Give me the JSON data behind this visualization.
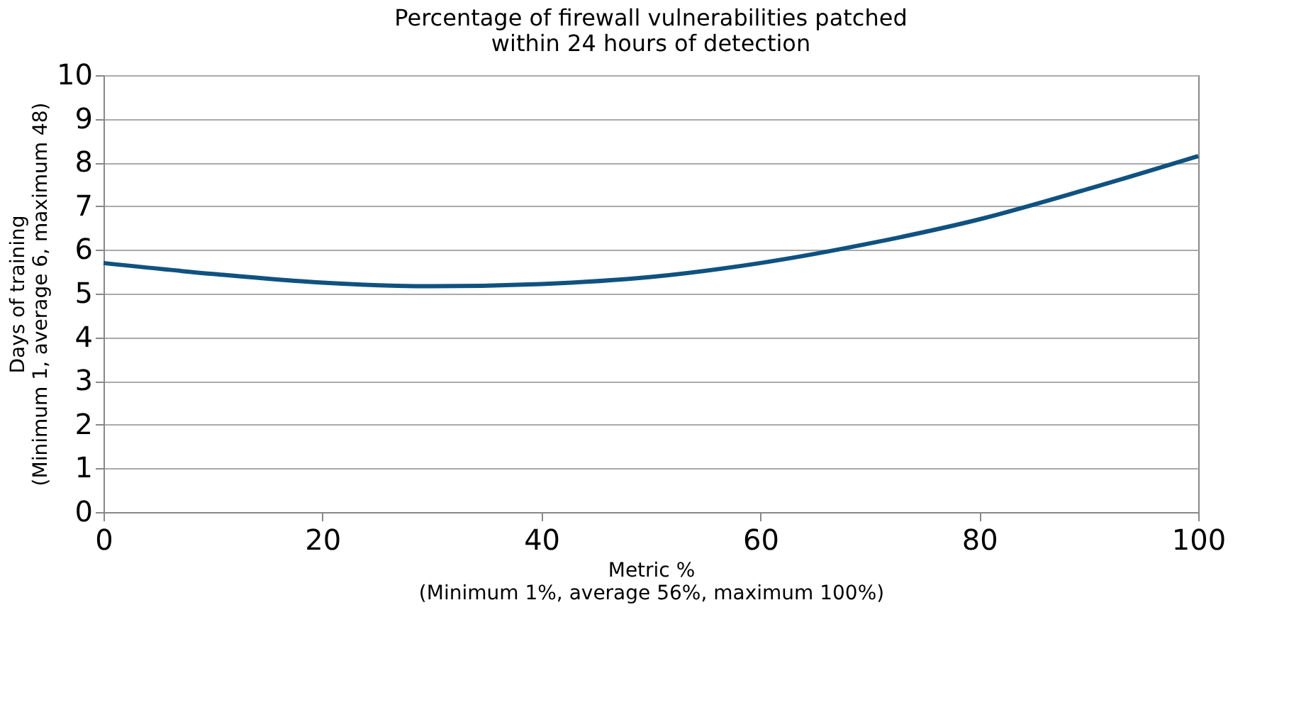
{
  "chart_data": {
    "type": "line",
    "title": "Percentage of firewall  vulnerabilities patched\nwithin 24 hours of detection",
    "xlabel": "Metric %\n(Minimum 1%, average 56%, maximum 100%)",
    "ylabel": "Days of training\n(Minimum 1, average 6, maximum 48)",
    "x": [
      0,
      10,
      20,
      30,
      40,
      50,
      60,
      70,
      80,
      90,
      100
    ],
    "series": [
      {
        "color": "#0f5280",
        "values": [
          5.7,
          5.45,
          5.25,
          5.17,
          5.22,
          5.38,
          5.7,
          6.15,
          6.7,
          7.4,
          8.15
        ]
      }
    ],
    "xlim": [
      0,
      100
    ],
    "xticks": [
      0,
      20,
      40,
      60,
      80,
      100
    ],
    "ylim": [
      0,
      10
    ],
    "yticks": [
      0,
      1,
      2,
      3,
      4,
      5,
      6,
      7,
      8,
      9,
      10
    ],
    "grid": "y",
    "legend": false,
    "marker": "none",
    "line_style": "solid"
  }
}
